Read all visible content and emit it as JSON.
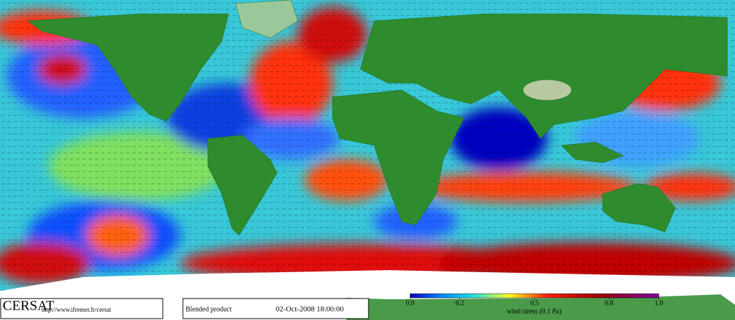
{
  "footer": {
    "logo": "CERSAT",
    "url": "http://www.ifremer.fr/cersat",
    "product": "Blended product",
    "datetime": "02-Oct-2008 18:00:00"
  },
  "colorbar": {
    "label": "wind stress (0.1 Pa)",
    "lim": [
      0,
      1
    ],
    "ticks": [
      {
        "value": 0,
        "label": "0.0"
      },
      0.2,
      0.5,
      0.8,
      {
        "value": 1,
        "label": "1.0"
      }
    ]
  }
}
